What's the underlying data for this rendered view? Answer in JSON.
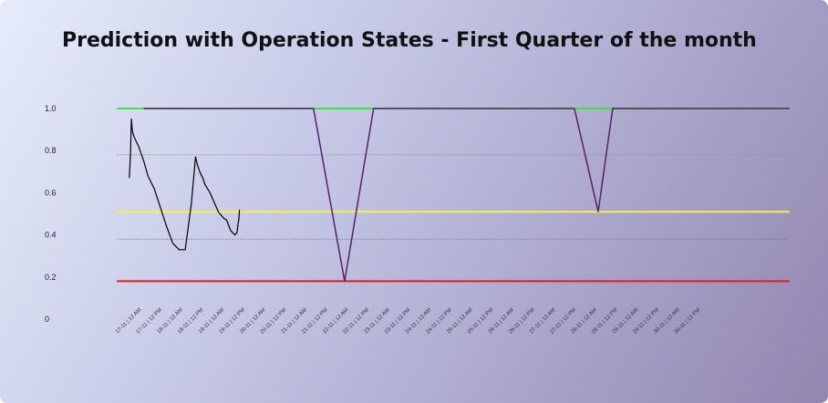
{
  "chart_data": {
    "type": "line",
    "title": "Prediction with Operation States - First Quarter of the month",
    "ylim": [
      0,
      1
    ],
    "ytick_labels": [
      "0",
      "0.2",
      "0.4",
      "0.6",
      "0.8",
      "1.0"
    ],
    "ytick_values": [
      0,
      0.2,
      0.4,
      0.6,
      0.8,
      1.0
    ],
    "x_tick_labels": [
      "17-11 | 12 AM",
      "17-11 | 12 PM",
      "18-11 | 12 AM",
      "18-11 | 12 PM",
      "19-11 | 12 AM",
      "19-11 | 12 PM",
      "20-11 | 12 AM",
      "20-11 | 12 PM",
      "21-11 | 12 AM",
      "21-11 | 12 PM",
      "22-11 | 12 AM",
      "22-11 | 12 PM",
      "23-11 | 12 AM",
      "23-11 | 12 PM",
      "24-11 | 12 AM",
      "24-11 | 12 PM",
      "25-11 | 12 AM",
      "25-11 | 12 PM",
      "26-11 | 12 AM",
      "26-11 | 12 PM",
      "27-11 | 12 AM",
      "27-11 | 12 PM",
      "28-11 | 12 AM",
      "28-11 | 12 PM",
      "29-11 | 12 AM",
      "29-11 | 12 PM",
      "30-11 | 12 AM",
      "30-11 | 12 PM"
    ],
    "xlim": [
      -0.3,
      32.2
    ],
    "thresholds": [
      {
        "value": 1.0,
        "color": "#39e639",
        "x_range": [
          -0.3,
          32.2
        ]
      },
      {
        "value": 0.51,
        "color": "#f2f24a",
        "x_range": [
          -0.3,
          32.2
        ]
      },
      {
        "value": 0.18,
        "color": "#e21b1b",
        "x_range": [
          -0.3,
          32.2
        ]
      }
    ],
    "gridlines": [
      {
        "value": 0.78,
        "color": "#8a8a9a"
      },
      {
        "value": 0.38,
        "color": "#6e6e7e"
      }
    ],
    "series": [
      {
        "color": "#000000",
        "x": [
          0.3,
          0.33,
          0.36,
          0.4,
          0.44,
          0.48,
          0.55,
          0.75,
          1.0,
          1.2,
          1.5,
          1.8,
          2.1,
          2.4,
          2.7,
          3.0,
          3.3,
          3.5,
          3.6,
          3.7,
          3.85,
          3.95,
          4.2,
          4.6,
          4.85,
          5.0,
          5.2,
          5.4,
          5.5,
          5.55,
          5.6,
          5.62
        ],
        "y": [
          0.67,
          0.73,
          0.8,
          0.95,
          0.9,
          0.88,
          0.86,
          0.82,
          0.75,
          0.68,
          0.62,
          0.53,
          0.44,
          0.36,
          0.33,
          0.33,
          0.55,
          0.77,
          0.73,
          0.7,
          0.67,
          0.64,
          0.6,
          0.51,
          0.48,
          0.47,
          0.42,
          0.4,
          0.41,
          0.45,
          0.48,
          0.52
        ]
      },
      {
        "color": "#5c1e6a",
        "x": [
          1.0,
          9.2,
          10.7,
          12.1,
          21.8,
          22.95,
          23.65,
          32.2
        ],
        "y": [
          1.0,
          1.0,
          0.18,
          1.0,
          1.0,
          0.51,
          1.0,
          1.0
        ]
      }
    ]
  }
}
